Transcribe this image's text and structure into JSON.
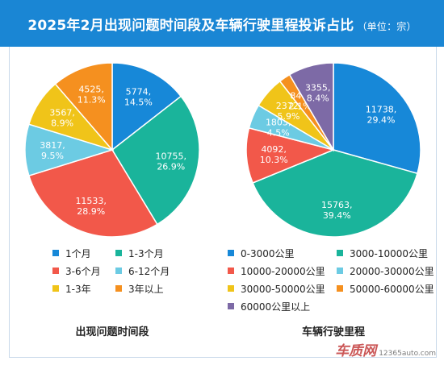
{
  "header": {
    "title": "2025年2月出现问题时间段及车辆行驶里程投诉占比",
    "unit": "（单位：宗）"
  },
  "colors": {
    "header_bg": "#1a86d4",
    "palette": [
      "#1788d8",
      "#1ab49b",
      "#f2584a",
      "#6ccbe3",
      "#f0c419",
      "#f5901f",
      "#7d6aa6"
    ]
  },
  "chart_data": [
    {
      "type": "pie",
      "title": "出现问题时间段",
      "categories": [
        "1个月",
        "1-3个月",
        "3-6个月",
        "6-12个月",
        "1-3年",
        "3年以上"
      ],
      "values": [
        5774,
        10755,
        11533,
        3817,
        3567,
        4525
      ],
      "percent_labels": [
        "14.5%",
        "26.9%",
        "28.9%",
        "9.5%",
        "8.9%",
        "11.3%"
      ],
      "colors": [
        "#1788d8",
        "#1ab49b",
        "#f2584a",
        "#6ccbe3",
        "#f0c419",
        "#f5901f"
      ],
      "start": "12 o'clock, clockwise",
      "legend": "bottom"
    },
    {
      "type": "pie",
      "title": "车辆行驶里程",
      "categories": [
        "0-3000公里",
        "3000-10000公里",
        "10000-20000公里",
        "20000-30000公里",
        "30000-50000公里",
        "50000-60000公里",
        "60000公里以上"
      ],
      "values": [
        11738,
        15763,
        4092,
        1803,
        2372,
        848,
        3355
      ],
      "percent_labels": [
        "29.4%",
        "39.4%",
        "10.3%",
        "4.5%",
        "5.9%",
        "2.1%",
        "8.4%"
      ],
      "colors": [
        "#1788d8",
        "#1ab49b",
        "#f2584a",
        "#6ccbe3",
        "#f0c419",
        "#f5901f",
        "#7d6aa6"
      ],
      "start": "12 o'clock, clockwise",
      "legend": "bottom"
    }
  ],
  "watermark": {
    "logo": "车质网",
    "url": "12365auto.com"
  }
}
